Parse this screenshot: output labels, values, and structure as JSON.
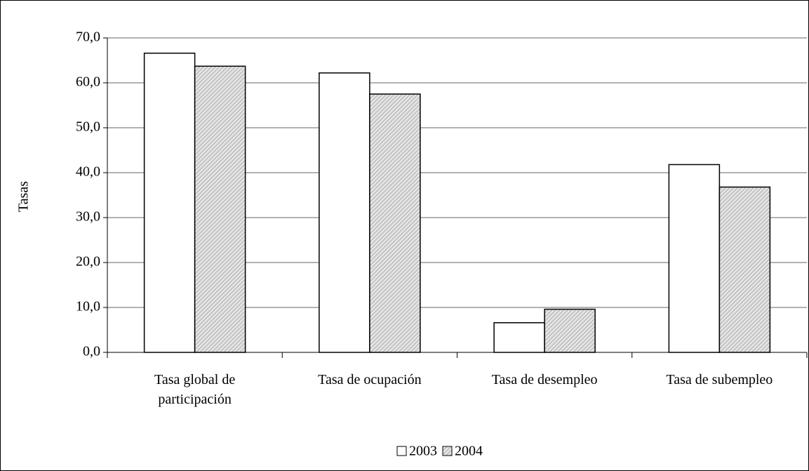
{
  "chart_data": {
    "type": "bar",
    "y_label": "Tasas",
    "categories": [
      "Tasa global de participación",
      "Tasa de ocupación",
      "Tasa de desempleo",
      "Tasa de subempleo"
    ],
    "series": [
      {
        "name": "2003",
        "color": "#ffffff",
        "values": [
          66.6,
          62.2,
          6.6,
          41.8
        ]
      },
      {
        "name": "2004",
        "color": "hatch",
        "values": [
          63.7,
          57.5,
          9.6,
          36.8
        ]
      }
    ],
    "ylim": [
      0,
      70
    ],
    "yticks": [
      {
        "value": 0,
        "label": "0,0"
      },
      {
        "value": 10,
        "label": "10,0"
      },
      {
        "value": 20,
        "label": "20,0"
      },
      {
        "value": 30,
        "label": "30,0"
      },
      {
        "value": 40,
        "label": "40,0"
      },
      {
        "value": 50,
        "label": "50,0"
      },
      {
        "value": 60,
        "label": "60,0"
      },
      {
        "value": 70,
        "label": "70,0"
      }
    ],
    "grid": true,
    "legend": "bottom"
  }
}
